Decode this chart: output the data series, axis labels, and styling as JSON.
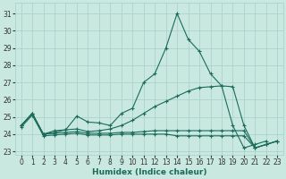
{
  "xlabel": "Humidex (Indice chaleur)",
  "background_color": "#c8e8e0",
  "grid_color": "#a8cec8",
  "line_color": "#1a6b5a",
  "xlim": [
    -0.5,
    23.5
  ],
  "ylim": [
    22.8,
    31.6
  ],
  "yticks": [
    23,
    24,
    25,
    26,
    27,
    28,
    29,
    30,
    31
  ],
  "xticks": [
    0,
    1,
    2,
    3,
    4,
    5,
    6,
    7,
    8,
    9,
    10,
    11,
    12,
    13,
    14,
    15,
    16,
    17,
    18,
    19,
    20,
    21,
    22,
    23
  ],
  "curve1_x": [
    0,
    1,
    2,
    3,
    4,
    5,
    6,
    7,
    8,
    9,
    10,
    11,
    12,
    13,
    14,
    15,
    16,
    17,
    18,
    19,
    20,
    21,
    22
  ],
  "curve1_y": [
    24.5,
    25.2,
    24.0,
    24.2,
    24.25,
    25.05,
    24.7,
    24.65,
    24.5,
    25.2,
    25.5,
    27.0,
    27.5,
    29.0,
    31.0,
    29.5,
    28.8,
    27.5,
    26.8,
    24.5,
    23.2,
    23.4,
    23.6
  ],
  "curve2_x": [
    0,
    1,
    2,
    3,
    4,
    5,
    6,
    7,
    8,
    9,
    10,
    11,
    12,
    13,
    14,
    15,
    16,
    17,
    18,
    19,
    20,
    21,
    22,
    23
  ],
  "curve2_y": [
    24.5,
    25.2,
    24.0,
    24.1,
    24.25,
    24.3,
    24.15,
    24.2,
    24.3,
    24.5,
    24.8,
    25.2,
    25.6,
    25.9,
    26.2,
    26.5,
    26.7,
    26.75,
    26.8,
    26.75,
    24.5,
    23.2,
    23.4,
    23.6
  ],
  "curve3_x": [
    0,
    1,
    2,
    3,
    4,
    5,
    6,
    7,
    8,
    9,
    10,
    11,
    12,
    13,
    14,
    15,
    16,
    17,
    18,
    19,
    20,
    21,
    22,
    23
  ],
  "curve3_y": [
    24.5,
    25.2,
    24.0,
    24.05,
    24.1,
    24.15,
    24.05,
    24.05,
    24.05,
    24.1,
    24.1,
    24.15,
    24.2,
    24.2,
    24.2,
    24.2,
    24.2,
    24.2,
    24.2,
    24.2,
    24.2,
    23.2,
    23.4,
    23.6
  ],
  "curve4_x": [
    0,
    1,
    2,
    3,
    4,
    5,
    6,
    7,
    8,
    9,
    10,
    11,
    12,
    13,
    14,
    15,
    16,
    17,
    18,
    19,
    20,
    21,
    22,
    23
  ],
  "curve4_y": [
    24.4,
    25.1,
    23.9,
    23.95,
    24.0,
    24.05,
    23.95,
    23.95,
    23.95,
    24.0,
    24.0,
    24.0,
    24.0,
    24.0,
    23.9,
    23.9,
    23.9,
    23.9,
    23.9,
    23.9,
    23.9,
    23.2,
    23.4,
    23.6
  ]
}
